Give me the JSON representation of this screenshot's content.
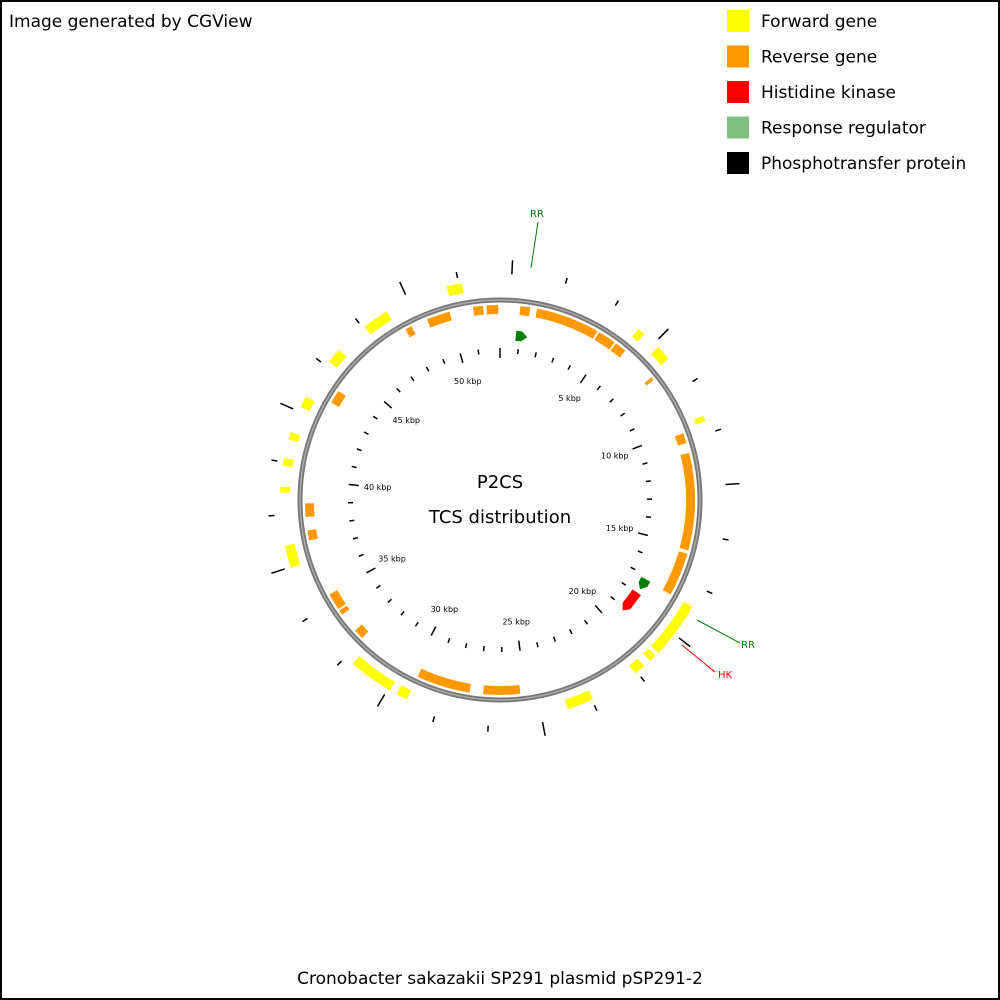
{
  "header": {
    "credit": "Image generated by CGView"
  },
  "legend": {
    "items": [
      {
        "label": "Forward gene",
        "color": "#ffff00"
      },
      {
        "label": "Reverse gene",
        "color": "#ff9900"
      },
      {
        "label": "Histidine kinase",
        "color": "#ff0000"
      },
      {
        "label": "Response regulator",
        "color": "#80c080"
      },
      {
        "label": "Phosphotransfer protein",
        "color": "#000000"
      }
    ]
  },
  "center": {
    "title": "P2CS",
    "subtitle": "TCS distribution"
  },
  "ruler_labels": [
    "5 kbp",
    "10 kbp",
    "15 kbp",
    "20 kbp",
    "25 kbp",
    "30 kbp",
    "35 kbp",
    "40 kbp",
    "45 kbp",
    "50 kbp"
  ],
  "annotations": [
    {
      "label": "RR"
    },
    {
      "label": "RR"
    },
    {
      "label": "HK"
    }
  ],
  "footer": {
    "caption": "Cronobacter sakazakii SP291 plasmid pSP291-2"
  }
}
